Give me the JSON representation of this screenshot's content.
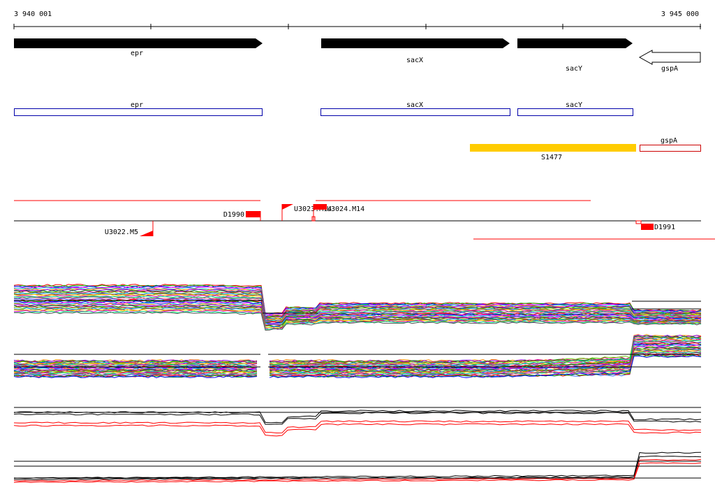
{
  "ruler": {
    "start_label": "3 940 001",
    "end_label": "3 945 000"
  },
  "genes": [
    {
      "name": "epr",
      "strand": "+"
    },
    {
      "name": "sacX",
      "strand": "+"
    },
    {
      "name": "sacY",
      "strand": "+"
    },
    {
      "name": "gspA",
      "strand": "-"
    }
  ],
  "cds": [
    {
      "name": "epr"
    },
    {
      "name": "sacX"
    },
    {
      "name": "sacY"
    },
    {
      "name": "gspA"
    }
  ],
  "segment": {
    "name": "S1477",
    "color": "#ffcc00"
  },
  "features": [
    {
      "name": "D1990"
    },
    {
      "name": "U3023.M14"
    },
    {
      "name": "U3024.M14"
    },
    {
      "name": "U3022.M5"
    },
    {
      "name": "D1991"
    }
  ],
  "colors": {
    "gene_arrow": "#000000",
    "cds_box": "#0000aa",
    "feature": "#ff0000",
    "gspA_box": "#cc0000"
  }
}
